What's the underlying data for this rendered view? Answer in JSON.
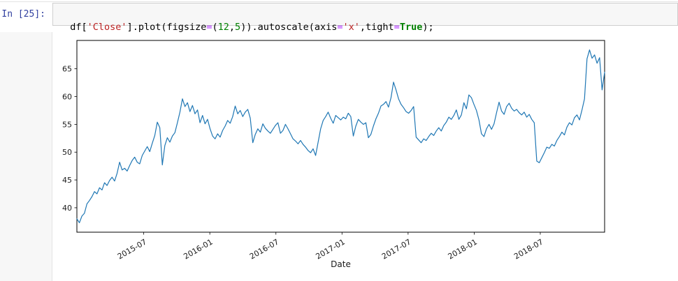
{
  "notebook": {
    "input_prompt": "In [25]:",
    "code_tokens": [
      {
        "t": "df[",
        "c": "plain"
      },
      {
        "t": "'Close'",
        "c": "str"
      },
      {
        "t": "].plot(figsize",
        "c": "plain"
      },
      {
        "t": "=",
        "c": "op"
      },
      {
        "t": "(",
        "c": "plain"
      },
      {
        "t": "12",
        "c": "num"
      },
      {
        "t": ",",
        "c": "plain"
      },
      {
        "t": "5",
        "c": "num"
      },
      {
        "t": ")).autoscale(axis",
        "c": "plain"
      },
      {
        "t": "=",
        "c": "op"
      },
      {
        "t": "'x'",
        "c": "str"
      },
      {
        "t": ",tight",
        "c": "plain"
      },
      {
        "t": "=",
        "c": "op"
      },
      {
        "t": "True",
        "c": "kw"
      },
      {
        "t": ");",
        "c": "plain"
      }
    ],
    "colors": {
      "prompt": "#303F9F",
      "string": "#BA2121",
      "number": "#008000",
      "operator": "#AA22FF",
      "keyword": "#008000",
      "cell_bg": "#f7f7f7",
      "cell_border": "#cfcfcf"
    }
  },
  "chart_data": {
    "type": "line",
    "title": "",
    "xlabel": "Date",
    "ylabel": "",
    "series_name": "Close",
    "line_color": "#1f77b4",
    "grid": false,
    "legend": "none",
    "x_unit": "weeks since 2015-01-02 (daily Close series, weekly-sampled)",
    "x_start": "2015-01-02",
    "x_step_days": 7,
    "ylim": [
      35.6,
      70.1
    ],
    "y_ticks": [
      40,
      45,
      50,
      55,
      60,
      65
    ],
    "x_ticks": [
      {
        "label": "2015-07",
        "index": 26.6
      },
      {
        "label": "2016-01",
        "index": 52.9
      },
      {
        "label": "2016-07",
        "index": 79.2
      },
      {
        "label": "2017-01",
        "index": 105.5
      },
      {
        "label": "2017-07",
        "index": 131.8
      },
      {
        "label": "2018-01",
        "index": 158.1
      },
      {
        "label": "2018-07",
        "index": 184.4
      }
    ],
    "values": [
      38.0,
      37.3,
      38.5,
      39.0,
      40.7,
      41.3,
      42.0,
      42.9,
      42.5,
      43.6,
      43.2,
      44.5,
      44.0,
      44.9,
      45.5,
      44.8,
      46.2,
      48.2,
      46.8,
      47.1,
      46.6,
      47.6,
      48.5,
      49.1,
      48.2,
      47.9,
      49.4,
      50.2,
      51.0,
      50.1,
      51.6,
      53.0,
      55.4,
      54.4,
      47.7,
      51.2,
      52.6,
      51.8,
      52.9,
      53.5,
      55.3,
      57.2,
      59.6,
      58.2,
      58.9,
      57.3,
      58.4,
      56.9,
      57.6,
      55.3,
      56.6,
      55.1,
      55.9,
      54.2,
      52.9,
      52.4,
      53.3,
      52.7,
      53.9,
      54.7,
      55.7,
      55.2,
      56.4,
      58.3,
      56.9,
      57.5,
      56.4,
      57.2,
      57.7,
      56.1,
      51.7,
      53.2,
      54.2,
      53.6,
      55.1,
      54.3,
      53.8,
      53.4,
      54.1,
      54.8,
      55.3,
      53.4,
      53.9,
      55.0,
      54.2,
      53.3,
      52.4,
      52.0,
      51.5,
      52.1,
      51.4,
      50.9,
      50.3,
      49.9,
      50.6,
      49.4,
      51.8,
      54.2,
      55.7,
      56.4,
      57.2,
      56.1,
      55.2,
      56.6,
      56.2,
      55.8,
      56.3,
      56.0,
      57.0,
      56.4,
      52.9,
      54.7,
      55.9,
      55.4,
      55.0,
      55.3,
      52.6,
      53.2,
      54.7,
      56.0,
      57.0,
      58.3,
      58.6,
      59.1,
      58.1,
      59.8,
      62.6,
      61.2,
      59.6,
      58.6,
      58.0,
      57.3,
      57.0,
      57.5,
      58.2,
      52.7,
      52.2,
      51.7,
      52.4,
      52.1,
      52.8,
      53.4,
      53.0,
      53.8,
      54.4,
      53.8,
      54.8,
      55.4,
      56.3,
      55.9,
      56.6,
      57.6,
      55.9,
      56.7,
      58.9,
      57.8,
      60.3,
      59.8,
      58.6,
      57.5,
      55.8,
      53.3,
      52.8,
      54.2,
      55.0,
      54.1,
      55.1,
      57.1,
      59.0,
      57.4,
      56.8,
      58.2,
      58.8,
      57.9,
      57.4,
      57.7,
      57.1,
      56.7,
      57.2,
      56.3,
      56.8,
      55.9,
      55.3,
      48.4,
      48.1,
      49.0,
      49.9,
      50.9,
      50.7,
      51.4,
      51.1,
      52.1,
      52.8,
      53.6,
      53.1,
      54.5,
      55.3,
      54.9,
      56.2,
      56.7,
      55.8,
      57.6,
      59.6,
      66.8,
      68.4,
      66.9,
      67.5,
      66.0,
      67.0,
      61.2,
      64.4
    ]
  }
}
